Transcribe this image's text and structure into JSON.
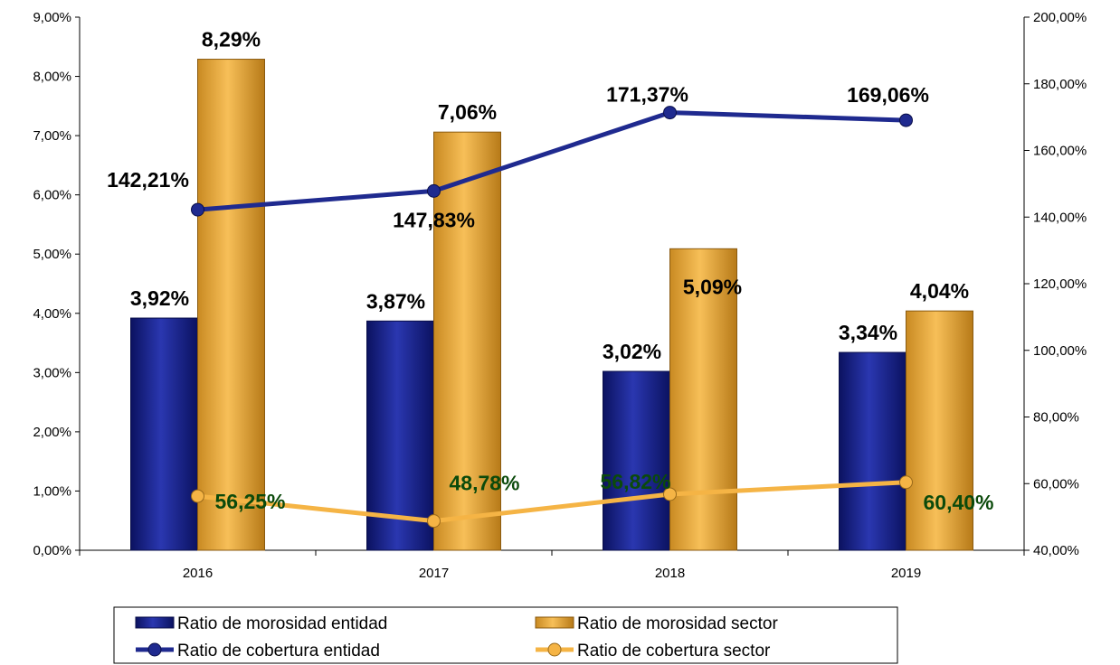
{
  "chart_data": {
    "type": "bar",
    "categories": [
      "2016",
      "2017",
      "2018",
      "2019"
    ],
    "y_left": {
      "min": 0,
      "max": 9,
      "ticks": [
        0,
        1,
        2,
        3,
        4,
        5,
        6,
        7,
        8,
        9
      ],
      "tick_labels": [
        "0,00%",
        "1,00%",
        "2,00%",
        "3,00%",
        "4,00%",
        "5,00%",
        "6,00%",
        "7,00%",
        "8,00%",
        "9,00%"
      ]
    },
    "y_right": {
      "min": 40,
      "max": 200,
      "ticks": [
        40,
        60,
        80,
        100,
        120,
        140,
        160,
        180,
        200
      ],
      "tick_labels": [
        "40,00%",
        "60,00%",
        "80,00%",
        "100,00%",
        "120,00%",
        "140,00%",
        "160,00%",
        "180,00%",
        "200,00%"
      ]
    },
    "grid": false,
    "legend_position": "bottom",
    "series": [
      {
        "name": "Ratio de morosidad entidad",
        "kind": "bar",
        "axis": "left",
        "color": "#1f2a8f",
        "values": [
          3.92,
          3.87,
          3.02,
          3.34
        ],
        "labels": [
          "3,92%",
          "3,87%",
          "3,02%",
          "3,34%"
        ]
      },
      {
        "name": "Ratio de morosidad sector",
        "kind": "bar",
        "axis": "left",
        "color": "#f5b445",
        "values": [
          8.29,
          7.06,
          5.09,
          4.04
        ],
        "labels": [
          "8,29%",
          "7,06%",
          "5,09%",
          "4,04%"
        ]
      },
      {
        "name": "Ratio de cobertura entidad",
        "kind": "line",
        "axis": "right",
        "color": "#1f2a8f",
        "values": [
          142.21,
          147.83,
          171.37,
          169.06
        ],
        "labels": [
          "142,21%",
          "147,83%",
          "171,37%",
          "169,06%"
        ]
      },
      {
        "name": "Ratio de cobertura sector",
        "kind": "line",
        "axis": "right",
        "color": "#f5b445",
        "values": [
          56.25,
          48.78,
          56.82,
          60.4
        ],
        "labels": [
          "56,25%",
          "48,78%",
          "56,82%",
          "60,40%"
        ]
      }
    ]
  }
}
